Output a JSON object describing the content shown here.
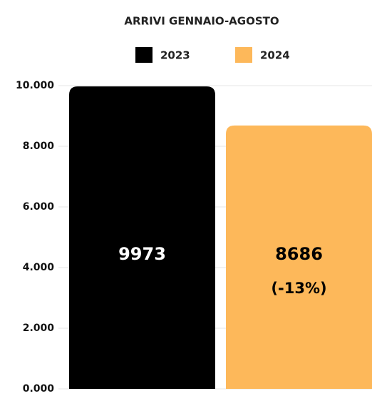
{
  "chart_data": {
    "type": "bar",
    "title": "ARRIVI GENNAIO-AGOSTO",
    "categories": [
      null
    ],
    "series": [
      {
        "name": "2023",
        "color": "#000000",
        "values": [
          9973
        ],
        "label_color": "#ffffff"
      },
      {
        "name": "2024",
        "color": "#fdb85a",
        "values": [
          8686
        ],
        "label_color": "#000000"
      }
    ],
    "annotation": "(-13%)",
    "ylim": [
      0,
      10000
    ],
    "yticks": [
      {
        "value": 0,
        "label": "0.000"
      },
      {
        "value": 2000,
        "label": "2.000"
      },
      {
        "value": 4000,
        "label": "4.000"
      },
      {
        "value": 6000,
        "label": "6.000"
      },
      {
        "value": 8000,
        "label": "8.000"
      },
      {
        "value": 10000,
        "label": "10.000"
      }
    ],
    "grid": true,
    "legend": "top"
  }
}
